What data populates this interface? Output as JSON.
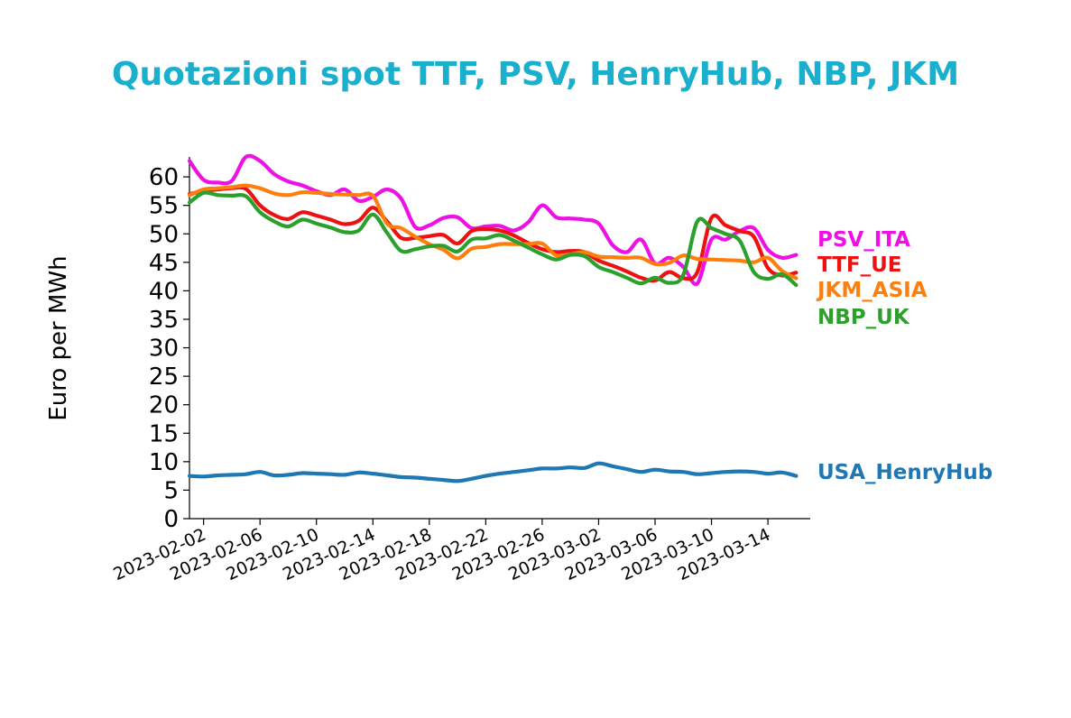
{
  "chart_data": {
    "type": "line",
    "title": "Quotazioni spot TTF, PSV, HenryHub, NBP, JKM",
    "xlabel": "",
    "ylabel": "Euro per MWh",
    "ylim": [
      0,
      63.5
    ],
    "xlim": [
      "2023-02-01",
      "2023-03-17"
    ],
    "yticks": [
      "0",
      "5",
      "10",
      "15",
      "20",
      "25",
      "30",
      "35",
      "40",
      "45",
      "50",
      "55",
      "60"
    ],
    "xticks": [
      "2023-02-02",
      "2023-02-06",
      "2023-02-10",
      "2023-02-14",
      "2023-02-18",
      "2023-02-22",
      "2023-02-26",
      "2023-03-02",
      "2023-03-06",
      "2023-03-10",
      "2023-03-14"
    ],
    "grid": false,
    "legend": "labels at line ends, right",
    "series": [
      {
        "name": "PSV_ITA",
        "color": "#ee10e4",
        "x": [
          "2023-02-01",
          "2023-02-02",
          "2023-02-03",
          "2023-02-04",
          "2023-02-05",
          "2023-02-06",
          "2023-02-07",
          "2023-02-08",
          "2023-02-09",
          "2023-02-10",
          "2023-02-11",
          "2023-02-12",
          "2023-02-13",
          "2023-02-14",
          "2023-02-15",
          "2023-02-16",
          "2023-02-17",
          "2023-02-18",
          "2023-02-19",
          "2023-02-20",
          "2023-02-21",
          "2023-02-22",
          "2023-02-23",
          "2023-02-24",
          "2023-02-25",
          "2023-02-26",
          "2023-02-27",
          "2023-02-28",
          "2023-03-01",
          "2023-03-02",
          "2023-03-03",
          "2023-03-04",
          "2023-03-05",
          "2023-03-06",
          "2023-03-07",
          "2023-03-08",
          "2023-03-09",
          "2023-03-10",
          "2023-03-11",
          "2023-03-12",
          "2023-03-13",
          "2023-03-14",
          "2023-03-15",
          "2023-03-16"
        ],
        "values": [
          62.8,
          59.5,
          59,
          59.3,
          63.5,
          62.8,
          60.5,
          59.2,
          58.5,
          57.5,
          56.8,
          57.8,
          55.8,
          56.5,
          57.8,
          56.2,
          51.2,
          51.5,
          52.8,
          52.9,
          51,
          51.3,
          51.4,
          50.6,
          52,
          55,
          52.9,
          52.7,
          52.5,
          51.8,
          48,
          46.8,
          49,
          44.8,
          45.8,
          44.2,
          41.3,
          49,
          49,
          50.5,
          51,
          47.2,
          45.8,
          46.3
        ]
      },
      {
        "name": "TTF_UE",
        "color": "#ee1111",
        "x": [
          "2023-02-01",
          "2023-02-02",
          "2023-02-03",
          "2023-02-04",
          "2023-02-05",
          "2023-02-06",
          "2023-02-07",
          "2023-02-08",
          "2023-02-09",
          "2023-02-10",
          "2023-02-11",
          "2023-02-12",
          "2023-02-13",
          "2023-02-14",
          "2023-02-15",
          "2023-02-16",
          "2023-02-17",
          "2023-02-18",
          "2023-02-19",
          "2023-02-20",
          "2023-02-21",
          "2023-02-22",
          "2023-02-23",
          "2023-02-24",
          "2023-02-25",
          "2023-02-26",
          "2023-02-27",
          "2023-02-28",
          "2023-03-01",
          "2023-03-02",
          "2023-03-03",
          "2023-03-04",
          "2023-03-05",
          "2023-03-06",
          "2023-03-07",
          "2023-03-08",
          "2023-03-09",
          "2023-03-10",
          "2023-03-11",
          "2023-03-12",
          "2023-03-13",
          "2023-03-14",
          "2023-03-15",
          "2023-03-16"
        ],
        "values": [
          57,
          57.5,
          57.8,
          58,
          57.9,
          55,
          53.3,
          52.6,
          53.8,
          53.2,
          52.5,
          51.7,
          52.3,
          54.6,
          52.2,
          49.3,
          49.3,
          49.6,
          49.8,
          48.3,
          50.5,
          50.8,
          50.6,
          49.7,
          48.4,
          47.3,
          46.8,
          47,
          46.8,
          45.3,
          44.4,
          43.4,
          42.3,
          41.8,
          43.3,
          42.2,
          43.3,
          52.8,
          51.5,
          50.5,
          49.5,
          44,
          42.7,
          43.2
        ]
      },
      {
        "name": "JKM_ASIA",
        "color": "#ff7f0e",
        "x": [
          "2023-02-01",
          "2023-02-02",
          "2023-02-03",
          "2023-02-04",
          "2023-02-05",
          "2023-02-06",
          "2023-02-07",
          "2023-02-08",
          "2023-02-09",
          "2023-02-10",
          "2023-02-11",
          "2023-02-12",
          "2023-02-13",
          "2023-02-14",
          "2023-02-15",
          "2023-02-16",
          "2023-02-17",
          "2023-02-18",
          "2023-02-19",
          "2023-02-20",
          "2023-02-21",
          "2023-02-22",
          "2023-02-23",
          "2023-02-24",
          "2023-02-25",
          "2023-02-26",
          "2023-02-27",
          "2023-02-28",
          "2023-03-01",
          "2023-03-02",
          "2023-03-03",
          "2023-03-04",
          "2023-03-05",
          "2023-03-06",
          "2023-03-07",
          "2023-03-08",
          "2023-03-09",
          "2023-03-10",
          "2023-03-11",
          "2023-03-12",
          "2023-03-13",
          "2023-03-14",
          "2023-03-15",
          "2023-03-16"
        ],
        "values": [
          56.8,
          57.8,
          58,
          58.2,
          58.5,
          58,
          57.1,
          56.8,
          57.3,
          57.2,
          57,
          56.9,
          56.8,
          56.7,
          51.8,
          51,
          49.5,
          48.2,
          47.2,
          45.7,
          47.4,
          47.7,
          48.2,
          48.2,
          48.2,
          48.3,
          46.2,
          46.4,
          46.8,
          46,
          45.9,
          45.8,
          45.8,
          44.7,
          44.9,
          46.2,
          45.6,
          45.5,
          45.4,
          45.3,
          45,
          45.8,
          43.5,
          42.2
        ]
      },
      {
        "name": "NBP_UK",
        "color": "#2ca02c",
        "x": [
          "2023-02-01",
          "2023-02-02",
          "2023-02-03",
          "2023-02-04",
          "2023-02-05",
          "2023-02-06",
          "2023-02-07",
          "2023-02-08",
          "2023-02-09",
          "2023-02-10",
          "2023-02-11",
          "2023-02-12",
          "2023-02-13",
          "2023-02-14",
          "2023-02-15",
          "2023-02-16",
          "2023-02-17",
          "2023-02-18",
          "2023-02-19",
          "2023-02-20",
          "2023-02-21",
          "2023-02-22",
          "2023-02-23",
          "2023-02-24",
          "2023-02-25",
          "2023-02-26",
          "2023-02-27",
          "2023-02-28",
          "2023-03-01",
          "2023-03-02",
          "2023-03-03",
          "2023-03-04",
          "2023-03-05",
          "2023-03-06",
          "2023-03-07",
          "2023-03-08",
          "2023-03-09",
          "2023-03-10",
          "2023-03-11",
          "2023-03-12",
          "2023-03-13",
          "2023-03-14",
          "2023-03-15",
          "2023-03-16"
        ],
        "values": [
          55.5,
          57.2,
          56.8,
          56.7,
          56.6,
          53.8,
          52.2,
          51.3,
          52.5,
          51.8,
          51.1,
          50.3,
          50.6,
          53.4,
          50.2,
          47,
          47.3,
          47.8,
          47.9,
          46.9,
          49,
          49.2,
          49.8,
          48.8,
          47.6,
          46.4,
          45.5,
          46.3,
          46.1,
          44.2,
          43.3,
          42.3,
          41.3,
          42.3,
          41.4,
          42.8,
          52.2,
          51,
          50,
          48.8,
          43.3,
          42.1,
          42.9,
          41
        ]
      },
      {
        "name": "USA_HenryHub",
        "color": "#1f77b4",
        "x": [
          "2023-02-01",
          "2023-02-02",
          "2023-02-03",
          "2023-02-04",
          "2023-02-05",
          "2023-02-06",
          "2023-02-07",
          "2023-02-08",
          "2023-02-09",
          "2023-02-10",
          "2023-02-11",
          "2023-02-12",
          "2023-02-13",
          "2023-02-14",
          "2023-02-15",
          "2023-02-16",
          "2023-02-17",
          "2023-02-18",
          "2023-02-19",
          "2023-02-20",
          "2023-02-21",
          "2023-02-22",
          "2023-02-23",
          "2023-02-24",
          "2023-02-25",
          "2023-02-26",
          "2023-02-27",
          "2023-02-28",
          "2023-03-01",
          "2023-03-02",
          "2023-03-03",
          "2023-03-04",
          "2023-03-05",
          "2023-03-06",
          "2023-03-07",
          "2023-03-08",
          "2023-03-09",
          "2023-03-10",
          "2023-03-11",
          "2023-03-12",
          "2023-03-13",
          "2023-03-14",
          "2023-03-15",
          "2023-03-16"
        ],
        "values": [
          7.5,
          7.4,
          7.6,
          7.7,
          7.8,
          8.2,
          7.6,
          7.7,
          8,
          7.9,
          7.8,
          7.7,
          8.1,
          7.9,
          7.6,
          7.3,
          7.2,
          7,
          6.8,
          6.6,
          7,
          7.5,
          7.9,
          8.2,
          8.5,
          8.8,
          8.8,
          9,
          8.9,
          9.7,
          9.2,
          8.7,
          8.2,
          8.6,
          8.3,
          8.2,
          7.8,
          8,
          8.2,
          8.3,
          8.2,
          7.9,
          8.1,
          7.5
        ]
      }
    ]
  }
}
